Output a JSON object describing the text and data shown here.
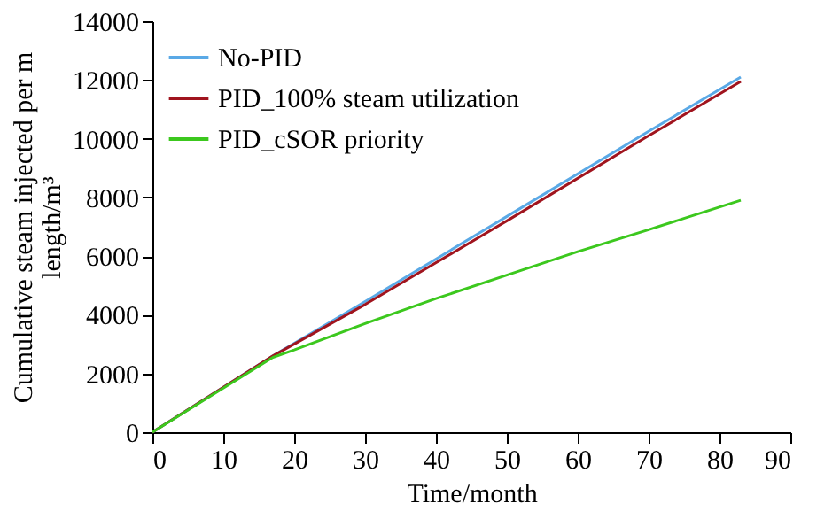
{
  "chart_data": {
    "type": "line",
    "xlabel": "Time/month",
    "ylabel": "Cumulative steam injected per m length/m³",
    "xlim": [
      0,
      90
    ],
    "xticks": [
      0,
      10,
      20,
      30,
      40,
      50,
      60,
      70,
      80,
      90
    ],
    "ylim": [
      0,
      14000
    ],
    "yticks": [
      0,
      2000,
      4000,
      6000,
      8000,
      10000,
      12000,
      14000
    ],
    "grid": false,
    "legend": "top left",
    "marker": "none",
    "line_style": "solid",
    "series": [
      {
        "name": "No-PID",
        "color": "#5aa9e6",
        "x": [
          0,
          17,
          30,
          50,
          70,
          83
        ],
        "values": [
          0,
          2600,
          4450,
          7350,
          10250,
          12100
        ]
      },
      {
        "name": "PID_100% steam utilization",
        "color": "#a0141e",
        "x": [
          0,
          17,
          30,
          50,
          70,
          83
        ],
        "values": [
          0,
          2600,
          4350,
          7200,
          10100,
          11950
        ]
      },
      {
        "name": "PID_cSOR priority",
        "color": "#3cc81e",
        "x": [
          0,
          10,
          17,
          20,
          30,
          40,
          50,
          60,
          70,
          83
        ],
        "values": [
          0,
          1500,
          2550,
          2800,
          3700,
          4550,
          5350,
          6150,
          6900,
          7900
        ]
      }
    ]
  }
}
